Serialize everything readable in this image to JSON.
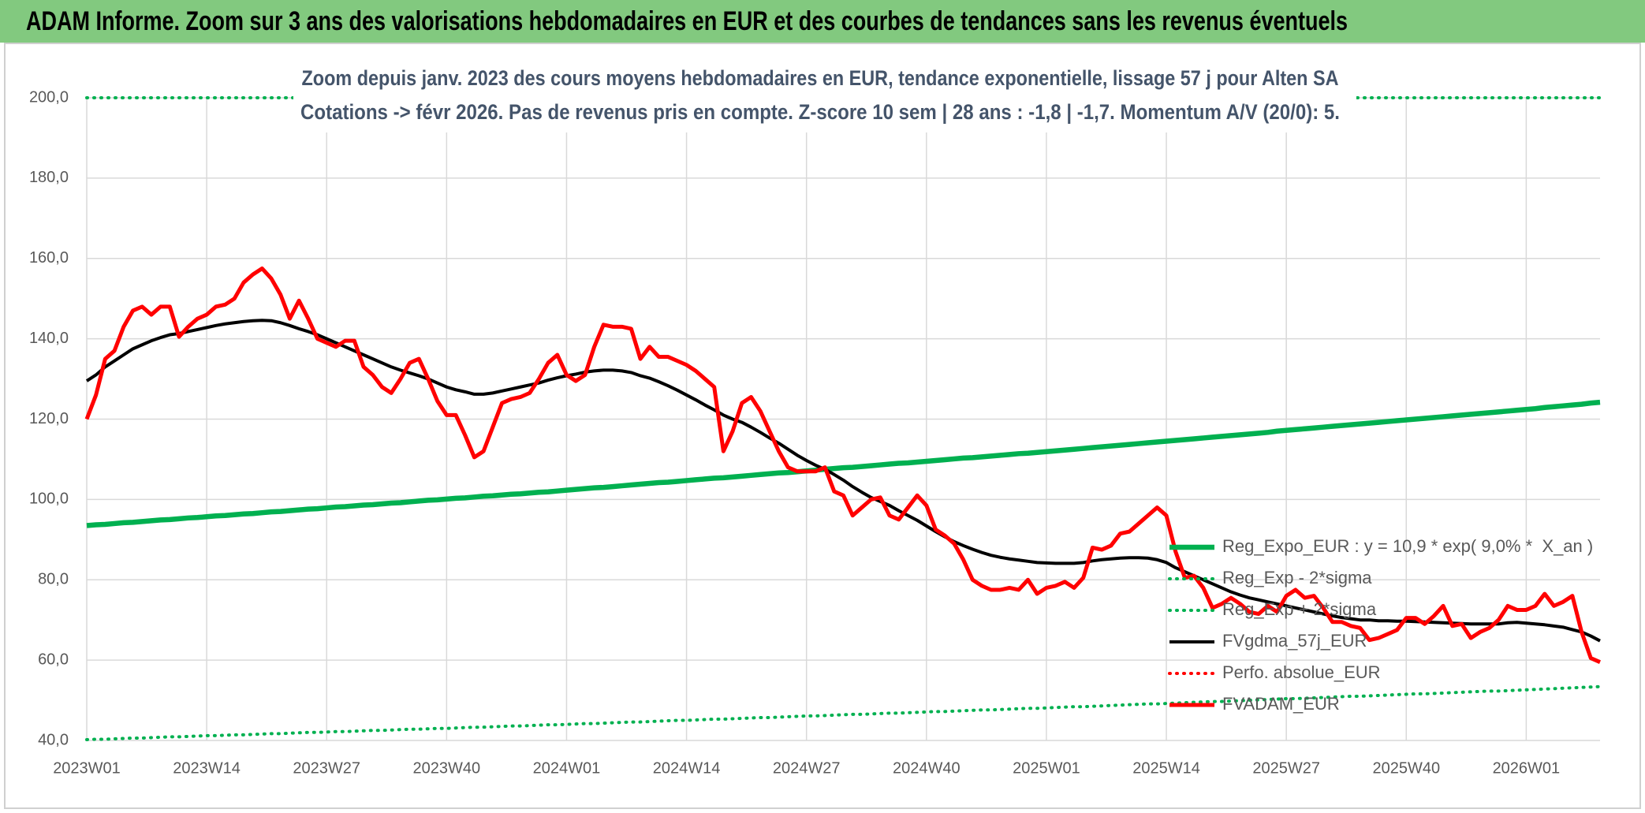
{
  "chart_data": {
    "type": "line",
    "title": "ADAM Informe. Zoom sur 3 ans des valorisations hebdomadaires en EUR et des courbes de tendances sans les revenus éventuels",
    "subtitle": [
      "Zoom depuis janv. 2023 des cours moyens hebdomadaires en EUR, tendance exponentielle, lissage 57 j pour Alten SA",
      "Cotations -> févr 2026. Pas de revenus pris en compte. Z-score 10 sem | 28 ans : -1,8 | -1,7. Momentum A/V (20/0): 5."
    ],
    "categories": [
      "2023W01",
      null,
      null,
      null,
      null,
      null,
      null,
      null,
      null,
      null,
      null,
      null,
      null,
      "2023W14",
      null,
      null,
      null,
      null,
      null,
      null,
      null,
      null,
      null,
      null,
      null,
      null,
      "2023W27",
      null,
      null,
      null,
      null,
      null,
      null,
      null,
      null,
      null,
      null,
      null,
      null,
      "2023W40",
      null,
      null,
      null,
      null,
      null,
      null,
      null,
      null,
      null,
      null,
      null,
      null,
      "2024W01",
      null,
      null,
      null,
      null,
      null,
      null,
      null,
      null,
      null,
      null,
      null,
      null,
      "2024W14",
      null,
      null,
      null,
      null,
      null,
      null,
      null,
      null,
      null,
      null,
      null,
      null,
      "2024W27",
      null,
      null,
      null,
      null,
      null,
      null,
      null,
      null,
      null,
      null,
      null,
      null,
      "2024W40",
      null,
      null,
      null,
      null,
      null,
      null,
      null,
      null,
      null,
      null,
      null,
      null,
      "2025W01",
      null,
      null,
      null,
      null,
      null,
      null,
      null,
      null,
      null,
      null,
      null,
      null,
      "2025W14",
      null,
      null,
      null,
      null,
      null,
      null,
      null,
      null,
      null,
      null,
      null,
      null,
      "2025W27",
      null,
      null,
      null,
      null,
      null,
      null,
      null,
      null,
      null,
      null,
      null,
      null,
      "2025W40",
      null,
      null,
      null,
      null,
      null,
      null,
      null,
      null,
      null,
      null,
      null,
      null,
      "2026W01",
      null,
      null,
      null,
      null,
      null,
      null,
      null,
      null
    ],
    "series": [
      {
        "name": "Reg_Expo_EUR : y = 10,9 * exp( 9,0% *  X_an )",
        "color": "#00b050",
        "style": "solid",
        "values": [
          93.5,
          93.7,
          93.8,
          94.0,
          94.2,
          94.3,
          94.5,
          94.7,
          94.9,
          95.0,
          95.2,
          95.4,
          95.5,
          95.7,
          95.9,
          96.0,
          96.2,
          96.4,
          96.5,
          96.7,
          96.9,
          97.0,
          97.2,
          97.4,
          97.6,
          97.7,
          97.9,
          98.1,
          98.2,
          98.4,
          98.6,
          98.7,
          98.9,
          99.1,
          99.2,
          99.4,
          99.6,
          99.8,
          99.9,
          100.1,
          100.3,
          100.4,
          100.6,
          100.8,
          100.9,
          101.1,
          101.3,
          101.4,
          101.6,
          101.8,
          101.9,
          102.1,
          102.3,
          102.5,
          102.7,
          102.9,
          103.0,
          103.2,
          103.4,
          103.6,
          103.8,
          104.0,
          104.2,
          104.3,
          104.5,
          104.7,
          104.9,
          105.1,
          105.3,
          105.4,
          105.6,
          105.8,
          106.0,
          106.2,
          106.4,
          106.6,
          106.7,
          106.9,
          107.1,
          107.3,
          107.5,
          107.7,
          107.9,
          108.0,
          108.2,
          108.4,
          108.6,
          108.8,
          109.0,
          109.1,
          109.3,
          109.5,
          109.7,
          109.9,
          110.1,
          110.3,
          110.4,
          110.6,
          110.8,
          111.0,
          111.2,
          111.4,
          111.5,
          111.7,
          111.9,
          112.1,
          112.3,
          112.5,
          112.7,
          112.9,
          113.1,
          113.3,
          113.5,
          113.7,
          113.9,
          114.1,
          114.3,
          114.5,
          114.7,
          114.9,
          115.1,
          115.3,
          115.5,
          115.7,
          115.9,
          116.1,
          116.3,
          116.5,
          116.7,
          117.0,
          117.2,
          117.4,
          117.6,
          117.8,
          118.0,
          118.2,
          118.4,
          118.6,
          118.8,
          119.0,
          119.2,
          119.4,
          119.6,
          119.8,
          120.0,
          120.2,
          120.4,
          120.6,
          120.8,
          121.0,
          121.2,
          121.4,
          121.6,
          121.8,
          122.0,
          122.2,
          122.4,
          122.6,
          122.9,
          123.1,
          123.3,
          123.5,
          123.7,
          124.0,
          124.2
        ]
      },
      {
        "name": "Reg_Exp - 2*sigma",
        "color": "#00b050",
        "style": "dotted",
        "values": [
          40.2,
          40.3,
          40.3,
          40.4,
          40.5,
          40.6,
          40.6,
          40.7,
          40.8,
          40.9,
          40.9,
          41.0,
          41.1,
          41.2,
          41.2,
          41.3,
          41.4,
          41.4,
          41.5,
          41.6,
          41.7,
          41.7,
          41.8,
          41.9,
          42.0,
          42.0,
          42.1,
          42.2,
          42.2,
          42.3,
          42.4,
          42.5,
          42.5,
          42.6,
          42.7,
          42.8,
          42.8,
          42.9,
          43.0,
          43.0,
          43.1,
          43.2,
          43.3,
          43.3,
          43.4,
          43.5,
          43.6,
          43.6,
          43.7,
          43.8,
          43.9,
          43.9,
          44.0,
          44.1,
          44.2,
          44.2,
          44.3,
          44.4,
          44.5,
          44.6,
          44.6,
          44.7,
          44.8,
          44.9,
          45.0,
          45.0,
          45.1,
          45.2,
          45.3,
          45.3,
          45.4,
          45.5,
          45.6,
          45.7,
          45.7,
          45.8,
          45.9,
          46.0,
          46.1,
          46.1,
          46.2,
          46.3,
          46.4,
          46.5,
          46.5,
          46.6,
          46.7,
          46.8,
          46.8,
          46.9,
          47.0,
          47.1,
          47.2,
          47.2,
          47.3,
          47.4,
          47.5,
          47.6,
          47.6,
          47.7,
          47.8,
          47.9,
          48.0,
          48.0,
          48.1,
          48.2,
          48.3,
          48.4,
          48.4,
          48.5,
          48.6,
          48.7,
          48.8,
          48.9,
          49.0,
          49.1,
          49.1,
          49.2,
          49.3,
          49.4,
          49.5,
          49.6,
          49.7,
          49.7,
          49.8,
          49.9,
          50.0,
          50.1,
          50.2,
          50.3,
          50.4,
          50.4,
          50.5,
          50.6,
          50.7,
          50.8,
          50.9,
          51.0,
          51.0,
          51.1,
          51.2,
          51.3,
          51.4,
          51.5,
          51.6,
          51.6,
          51.7,
          51.8,
          51.9,
          52.0,
          52.1,
          52.2,
          52.3,
          52.3,
          52.4,
          52.5,
          52.6,
          52.7,
          52.8,
          52.9,
          53.0,
          53.1,
          53.2,
          53.3,
          53.4
        ]
      },
      {
        "name": "Reg_Exp + 2*sigma",
        "color": "#00b050",
        "style": "dotted",
        "values": [
          200,
          200,
          200,
          200,
          200,
          200,
          200,
          200,
          200,
          200,
          200,
          200,
          200,
          200,
          200,
          200,
          200,
          200,
          200,
          200,
          200,
          200,
          200,
          200,
          200,
          200,
          200,
          200,
          200,
          200,
          200,
          200,
          200,
          200,
          200,
          200,
          200,
          200,
          200,
          200,
          200,
          200,
          200,
          200,
          200,
          200,
          200,
          200,
          200,
          200,
          200,
          200,
          200,
          200,
          200,
          200,
          200,
          200,
          200,
          200,
          200,
          200,
          200,
          200,
          200,
          200,
          200,
          200,
          200,
          200,
          200,
          200,
          200,
          200,
          200,
          200,
          200,
          200,
          200,
          200,
          200,
          200,
          200,
          200,
          200,
          200,
          200,
          200,
          200,
          200,
          200,
          200,
          200,
          200,
          200,
          200,
          200,
          200,
          200,
          200,
          200,
          200,
          200,
          200,
          200,
          200,
          200,
          200,
          200,
          200,
          200,
          200,
          200,
          200,
          200,
          200,
          200,
          200,
          200,
          200,
          200,
          200,
          200,
          200,
          200,
          200,
          200,
          200,
          200,
          200,
          200,
          200,
          200,
          200,
          200,
          200,
          200,
          200,
          200,
          200,
          200,
          200,
          200,
          200,
          200,
          200,
          200,
          200,
          200,
          200,
          200,
          200,
          200,
          200,
          200,
          200,
          200,
          200,
          200,
          200,
          200,
          200,
          200,
          200,
          200
        ]
      },
      {
        "name": "FVgdma_57j_EUR",
        "color": "#000000",
        "style": "solid",
        "values": [
          129.5,
          131,
          133,
          134.5,
          136,
          137.5,
          138.5,
          139.5,
          140.3,
          141,
          141.3,
          141.8,
          142.3,
          142.8,
          143.3,
          143.7,
          144,
          144.3,
          144.5,
          144.6,
          144.5,
          144,
          143.3,
          142.5,
          141.8,
          141,
          140,
          139,
          138,
          137,
          136,
          135,
          134,
          133,
          132.2,
          131.5,
          130.8,
          130,
          129,
          128,
          127.3,
          126.8,
          126.2,
          126.2,
          126.5,
          127,
          127.5,
          128,
          128.5,
          129,
          129.7,
          130.3,
          130.8,
          131.2,
          131.7,
          132,
          132.2,
          132.2,
          132,
          131.6,
          130.8,
          130.2,
          129.3,
          128.3,
          127.2,
          126,
          124.8,
          123.5,
          122.3,
          121,
          120,
          119.2,
          118,
          116.7,
          115.3,
          114,
          112.5,
          111,
          109.7,
          108.5,
          107.5,
          106.2,
          104.8,
          103.2,
          101.8,
          100.5,
          99.5,
          98.5,
          97.2,
          96,
          94.8,
          93.4,
          92,
          90.7,
          89.5,
          88.5,
          87.6,
          86.8,
          86.1,
          85.6,
          85.2,
          84.9,
          84.6,
          84.3,
          84.2,
          84.1,
          84.1,
          84.1,
          84.3,
          84.7,
          85,
          85.2,
          85.4,
          85.5,
          85.5,
          85.4,
          85,
          84.3,
          83,
          82,
          81,
          80,
          79,
          78,
          77,
          76.2,
          75.5,
          75,
          74.5,
          74,
          73.5,
          73,
          72.5,
          72,
          71.5,
          71,
          70.6,
          70.3,
          70,
          70,
          69.8,
          69.8,
          69.7,
          69.7,
          69.6,
          69.5,
          69.4,
          69.3,
          69.2,
          69.1,
          69,
          69,
          69,
          69,
          69.3,
          69.4,
          69.2,
          69,
          68.8,
          68.5,
          68.2,
          67.6,
          67,
          66,
          64.8
        ]
      },
      {
        "name": "Perfo. absolue_EUR",
        "color": "#ff0000",
        "style": "dotted",
        "values": [
          null,
          null,
          null,
          null,
          null,
          null,
          null,
          null,
          null,
          null,
          null,
          null,
          null,
          null,
          null,
          null,
          null,
          null,
          null,
          null,
          null,
          null,
          null,
          null,
          null,
          null,
          null,
          null,
          null,
          null,
          null,
          null,
          null,
          null,
          null,
          null,
          null,
          null,
          null,
          null,
          null,
          null,
          null,
          null,
          null,
          null,
          null,
          null,
          null,
          null,
          null,
          null,
          null,
          null,
          null,
          null,
          null,
          null,
          null,
          null,
          null,
          null,
          null,
          null,
          null,
          null,
          null,
          null,
          null,
          null,
          null,
          null,
          null,
          null,
          null,
          null,
          null,
          null,
          null,
          null,
          null,
          null,
          null,
          null,
          null,
          null,
          null,
          null,
          null,
          null,
          null,
          null,
          null,
          null,
          null,
          null,
          null,
          null,
          null,
          null,
          null,
          null,
          null,
          null,
          null,
          null,
          null,
          null,
          null,
          null,
          null,
          null,
          null,
          null,
          null,
          null,
          null,
          null,
          null,
          null,
          null,
          null,
          null,
          null,
          null,
          null,
          null,
          null,
          null,
          null,
          null,
          null,
          null,
          null,
          null,
          null,
          null,
          null,
          null,
          null,
          null,
          null,
          null,
          null,
          null,
          null,
          null,
          null,
          null,
          null,
          null,
          null,
          null,
          null,
          null,
          null,
          null,
          null,
          null,
          null,
          null,
          null,
          null,
          null,
          null
        ]
      },
      {
        "name": "FVADAM_EUR",
        "color": "#ff0000",
        "style": "solid",
        "values": [
          120,
          126,
          135,
          137,
          143,
          147,
          148,
          146,
          148,
          148,
          140.5,
          143,
          145,
          146,
          148,
          148.5,
          150,
          154,
          156,
          157.5,
          155,
          151,
          145,
          149.5,
          145,
          140,
          139,
          138,
          139.5,
          139.5,
          133,
          131,
          128,
          126.5,
          130,
          134,
          135,
          130,
          124.5,
          121,
          121,
          116,
          110.5,
          112,
          118,
          124,
          125,
          125.5,
          126.5,
          130,
          134,
          136,
          131,
          129.5,
          131,
          138,
          143.5,
          143,
          143,
          142.5,
          135,
          138,
          135.5,
          135.5,
          134.5,
          133.5,
          132,
          130,
          128,
          112,
          117,
          124,
          125.5,
          122,
          117,
          112,
          108,
          107,
          107,
          107,
          108,
          102,
          101,
          96,
          98,
          100,
          100.5,
          96,
          95,
          98,
          101,
          98.5,
          92.5,
          91,
          89,
          85,
          80,
          78.5,
          77.5,
          77.5,
          78,
          77.5,
          80,
          76.5,
          78,
          78.5,
          79.5,
          78,
          80.5,
          88,
          87.5,
          88.5,
          91.5,
          92,
          94,
          96,
          98,
          96,
          87,
          80.5,
          81,
          78,
          73,
          74,
          75.5,
          74,
          72,
          71.5,
          73.5,
          72,
          76,
          77.5,
          75.5,
          76,
          73,
          69.5,
          69.5,
          68.5,
          68,
          65,
          65.5,
          66.5,
          67.5,
          70.5,
          70.5,
          69,
          71,
          73.5,
          68.5,
          69,
          65.5,
          67,
          68,
          70,
          73.5,
          72.5,
          72.5,
          73.5,
          76.5,
          73.5,
          74.5,
          76,
          67,
          60.5,
          59.5
        ]
      }
    ],
    "ylim": [
      40,
      200
    ],
    "yticks": [
      {
        "value": 40,
        "label": "40,0"
      },
      {
        "value": 60,
        "label": "60,0"
      },
      {
        "value": 80,
        "label": "80,0"
      },
      {
        "value": 100,
        "label": "100,0"
      },
      {
        "value": 120,
        "label": "120,0"
      },
      {
        "value": 140,
        "label": "140,0"
      },
      {
        "value": 160,
        "label": "160,0"
      },
      {
        "value": 180,
        "label": "180,0"
      },
      {
        "value": 200,
        "label": "200,0"
      }
    ],
    "grid": true,
    "legend": "right"
  }
}
